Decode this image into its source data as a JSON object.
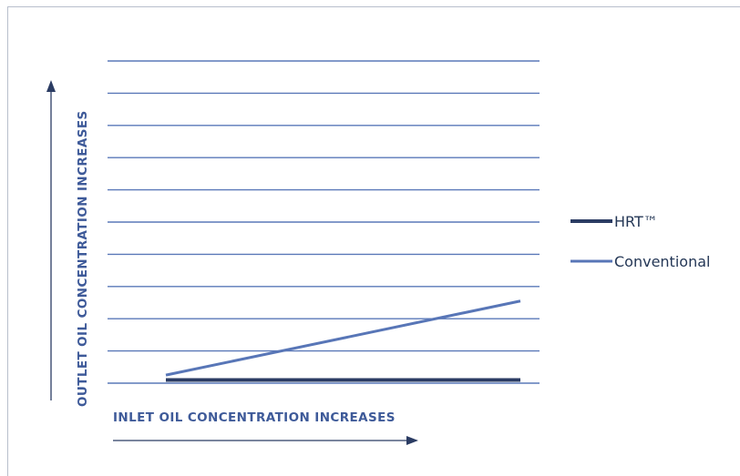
{
  "chart_data": {
    "type": "line",
    "title": "",
    "xlabel": "INLET OIL CONCENTRATION INCREASES",
    "ylabel": "OUTLET OIL CONCENTRATION INCREASES",
    "x": [
      0,
      1
    ],
    "xlim": [
      0,
      1
    ],
    "ylim": [
      0,
      10
    ],
    "grid": true,
    "gridline_count": 11,
    "legend_position": "right",
    "series": [
      {
        "name": "HRT™",
        "values": [
          0.1,
          0.1
        ],
        "color": "#2b3c63"
      },
      {
        "name": "Conventional",
        "values": [
          0.25,
          2.55
        ],
        "color": "#5876b7"
      }
    ]
  },
  "colors": {
    "grid": "#5a78b8",
    "axis_arrow": "#2b3c63",
    "axis_title": "#3e5a99"
  }
}
